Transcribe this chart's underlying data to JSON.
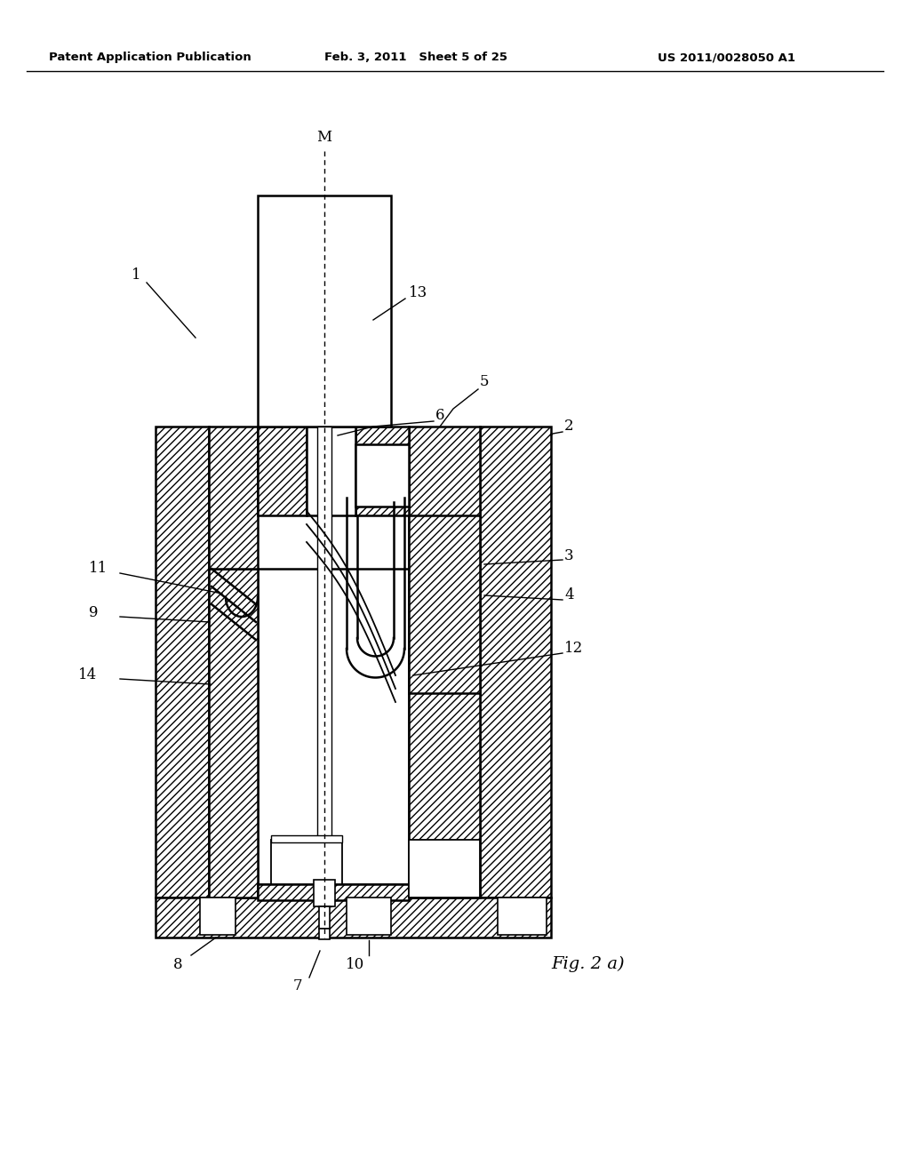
{
  "title_left": "Patent Application Publication",
  "title_mid": "Feb. 3, 2011   Sheet 5 of 25",
  "title_right": "US 2011/0028050 A1",
  "fig_label": "Fig. 2 a)",
  "bg_color": "#ffffff",
  "lc": "#000000",
  "label_M": "M",
  "label_1": "1",
  "label_2": "2",
  "label_3": "3",
  "label_4": "4",
  "label_5": "5",
  "label_6": "6",
  "label_7": "7",
  "label_8": "8",
  "label_9": "9",
  "label_10": "10",
  "label_11": "11",
  "label_12": "12",
  "label_13": "13",
  "label_14": "14"
}
